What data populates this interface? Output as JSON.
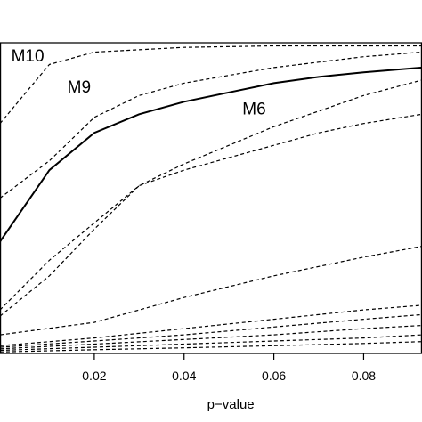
{
  "chart_data": {
    "type": "line",
    "title": "",
    "xlabel": "p−value",
    "ylabel": "",
    "xlim": [
      -0.001,
      0.093
    ],
    "ylim": [
      0.0,
      1.0
    ],
    "xticks": [
      0.02,
      0.04,
      0.06,
      0.08
    ],
    "xtick_labels": [
      "0.02",
      "0.04",
      "0.06",
      "0.08"
    ],
    "grid": false,
    "legend": "none",
    "series": [
      {
        "name": "M10",
        "style": "dashed",
        "points": [
          [
            -0.001,
            0.74
          ],
          [
            0.01,
            0.93
          ],
          [
            0.02,
            0.97
          ],
          [
            0.04,
            0.985
          ],
          [
            0.06,
            0.99
          ],
          [
            0.093,
            0.99
          ]
        ]
      },
      {
        "name": "",
        "style": "dashed",
        "points": [
          [
            -0.001,
            0.5
          ],
          [
            0.01,
            0.62
          ],
          [
            0.02,
            0.76
          ],
          [
            0.03,
            0.83
          ],
          [
            0.04,
            0.87
          ],
          [
            0.06,
            0.92
          ],
          [
            0.08,
            0.955
          ],
          [
            0.093,
            0.97
          ]
        ]
      },
      {
        "name": "M9",
        "style": "solid",
        "points": [
          [
            -0.001,
            0.36
          ],
          [
            0.01,
            0.59
          ],
          [
            0.02,
            0.71
          ],
          [
            0.03,
            0.77
          ],
          [
            0.04,
            0.81
          ],
          [
            0.05,
            0.84
          ],
          [
            0.06,
            0.87
          ],
          [
            0.07,
            0.89
          ],
          [
            0.08,
            0.905
          ],
          [
            0.093,
            0.92
          ]
        ]
      },
      {
        "name": "M6",
        "style": "dashed",
        "points": [
          [
            -0.001,
            0.14
          ],
          [
            0.01,
            0.3
          ],
          [
            0.02,
            0.42
          ],
          [
            0.03,
            0.54
          ],
          [
            0.04,
            0.59
          ],
          [
            0.05,
            0.63
          ],
          [
            0.06,
            0.67
          ],
          [
            0.07,
            0.71
          ],
          [
            0.08,
            0.74
          ],
          [
            0.093,
            0.77
          ]
        ]
      },
      {
        "name": "",
        "style": "dashed",
        "points": [
          [
            -0.001,
            0.12
          ],
          [
            0.01,
            0.25
          ],
          [
            0.02,
            0.4
          ],
          [
            0.03,
            0.54
          ],
          [
            0.04,
            0.61
          ],
          [
            0.05,
            0.67
          ],
          [
            0.06,
            0.73
          ],
          [
            0.07,
            0.78
          ],
          [
            0.08,
            0.83
          ],
          [
            0.093,
            0.88
          ]
        ]
      },
      {
        "name": "",
        "style": "dashed",
        "points": [
          [
            -0.001,
            0.06
          ],
          [
            0.02,
            0.1
          ],
          [
            0.04,
            0.18
          ],
          [
            0.06,
            0.25
          ],
          [
            0.08,
            0.31
          ],
          [
            0.093,
            0.345
          ]
        ]
      },
      {
        "name": "",
        "style": "dashed",
        "points": [
          [
            -0.001,
            0.025
          ],
          [
            0.02,
            0.05
          ],
          [
            0.04,
            0.08
          ],
          [
            0.06,
            0.11
          ],
          [
            0.08,
            0.14
          ],
          [
            0.093,
            0.155
          ]
        ]
      },
      {
        "name": "",
        "style": "dashed",
        "points": [
          [
            -0.001,
            0.02
          ],
          [
            0.02,
            0.04
          ],
          [
            0.04,
            0.06
          ],
          [
            0.06,
            0.085
          ],
          [
            0.08,
            0.11
          ],
          [
            0.093,
            0.125
          ]
        ]
      },
      {
        "name": "",
        "style": "dashed",
        "points": [
          [
            -0.001,
            0.015
          ],
          [
            0.02,
            0.03
          ],
          [
            0.04,
            0.045
          ],
          [
            0.06,
            0.06
          ],
          [
            0.08,
            0.08
          ],
          [
            0.093,
            0.09
          ]
        ]
      },
      {
        "name": "",
        "style": "dashed",
        "points": [
          [
            -0.001,
            0.01
          ],
          [
            0.02,
            0.02
          ],
          [
            0.04,
            0.03
          ],
          [
            0.06,
            0.04
          ],
          [
            0.08,
            0.05
          ],
          [
            0.093,
            0.06
          ]
        ]
      },
      {
        "name": "",
        "style": "dashed",
        "points": [
          [
            -0.001,
            0.005
          ],
          [
            0.02,
            0.012
          ],
          [
            0.04,
            0.018
          ],
          [
            0.06,
            0.025
          ],
          [
            0.08,
            0.032
          ],
          [
            0.093,
            0.038
          ]
        ]
      }
    ],
    "labels": [
      {
        "text": "M10",
        "x": 0.0015,
        "y": 0.94
      },
      {
        "text": "M9",
        "x": 0.014,
        "y": 0.84
      },
      {
        "text": "M6",
        "x": 0.053,
        "y": 0.77
      }
    ]
  }
}
